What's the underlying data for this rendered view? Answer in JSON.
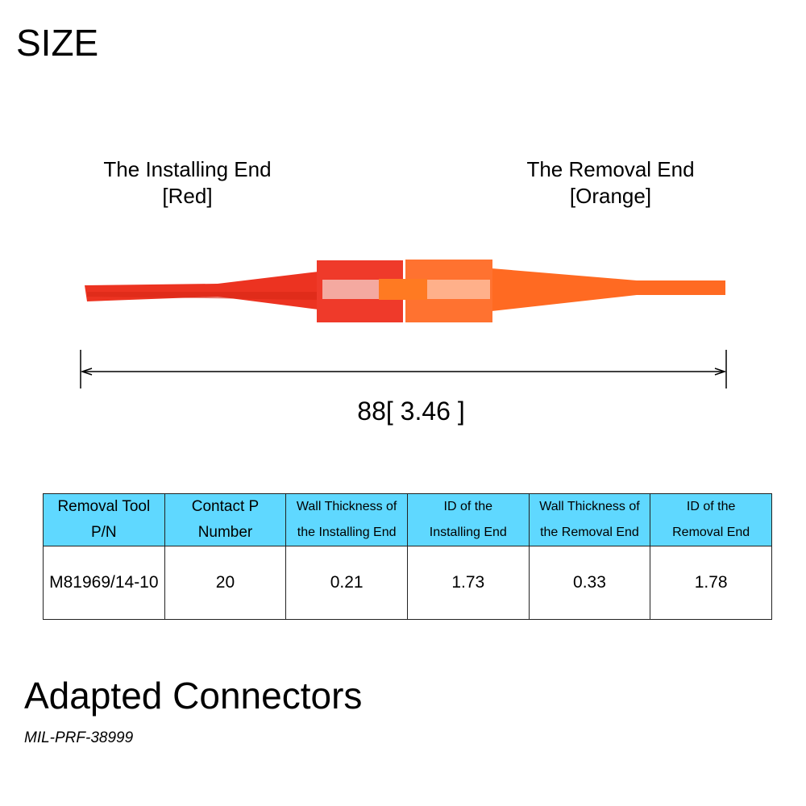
{
  "title": "SIZE",
  "installing_end": {
    "line1": "The Installing End",
    "line2": "[Red]",
    "color": "#ec3321"
  },
  "removal_end": {
    "line1": "The Removal End",
    "line2": "[Orange]",
    "color": "#ff6a22"
  },
  "dimension": "88[ 3.46 ]",
  "table": {
    "header_color": "#5fd8ff",
    "headers": [
      {
        "l1": "Removal Tool",
        "l2": "P/N"
      },
      {
        "l1": "Contact P",
        "l2": "Number"
      },
      {
        "l1": "Wall Thickness of",
        "l2": "the Installing End"
      },
      {
        "l1": "ID of the",
        "l2": "Installing End"
      },
      {
        "l1": "Wall Thickness of",
        "l2": "the Removal End"
      },
      {
        "l1": "ID of the",
        "l2": "Removal End"
      }
    ],
    "row": [
      "M81969/14-10",
      "20",
      "0.21",
      "1.73",
      "0.33",
      "1.78"
    ]
  },
  "adapted_title": "Adapted Connectors",
  "adapted_standard": "MIL-PRF-38999"
}
